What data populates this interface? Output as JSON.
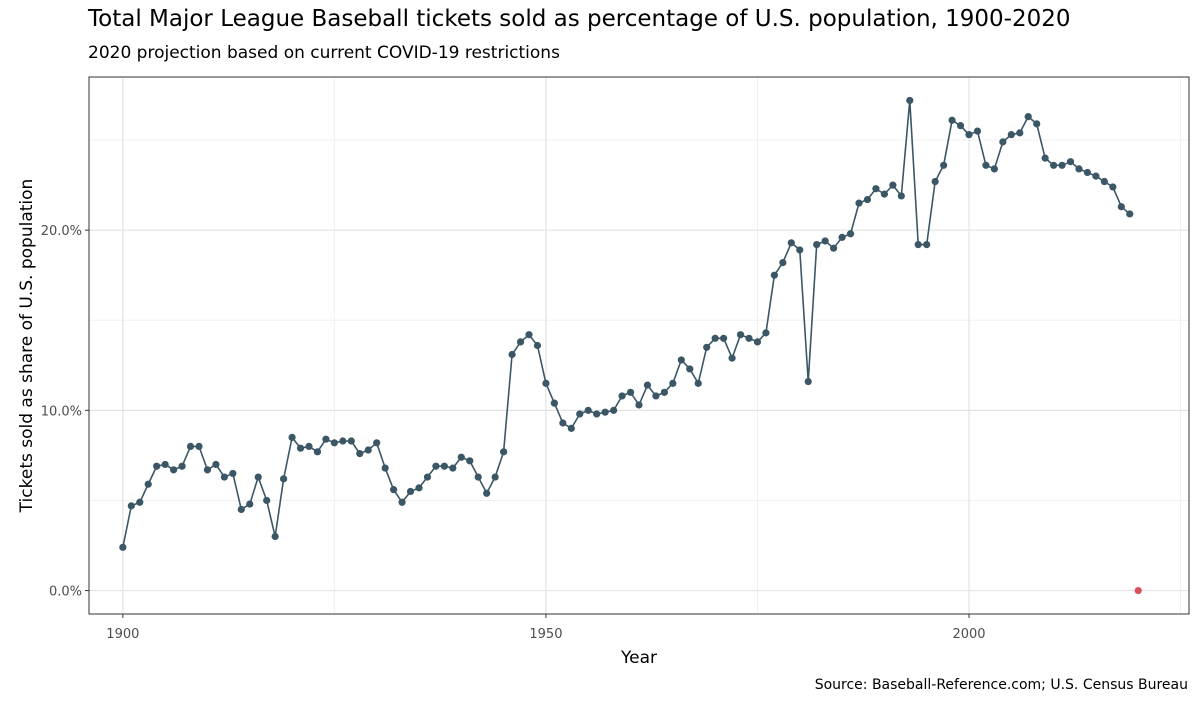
{
  "chart_data": {
    "type": "line",
    "title": "Total Major League Baseball tickets sold as percentage of U.S. population, 1900-2020",
    "subtitle": "2020 projection based on current COVID-19 restrictions",
    "caption": "Source: Baseball-Reference.com; U.S. Census Bureau",
    "xlabel": "Year",
    "ylabel": "Tickets sold as share of U.S. population",
    "xlim": [
      1896,
      2026
    ],
    "ylim": [
      -1.3,
      28.5
    ],
    "x_ticks": [
      1900,
      1950,
      2000
    ],
    "x_tick_labels": [
      "1900",
      "1950",
      "2000"
    ],
    "y_ticks": [
      0,
      10,
      20
    ],
    "y_tick_labels": [
      "0.0%",
      "10.0%",
      "20.0%"
    ],
    "grid": true,
    "series": [
      {
        "color": "#3b5766",
        "x": [
          1900,
          1901,
          1902,
          1903,
          1904,
          1905,
          1906,
          1907,
          1908,
          1909,
          1910,
          1911,
          1912,
          1913,
          1914,
          1915,
          1916,
          1917,
          1918,
          1919,
          1920,
          1921,
          1922,
          1923,
          1924,
          1925,
          1926,
          1927,
          1928,
          1929,
          1930,
          1931,
          1932,
          1933,
          1934,
          1935,
          1936,
          1937,
          1938,
          1939,
          1940,
          1941,
          1942,
          1943,
          1944,
          1945,
          1946,
          1947,
          1948,
          1949,
          1950,
          1951,
          1952,
          1953,
          1954,
          1955,
          1956,
          1957,
          1958,
          1959,
          1960,
          1961,
          1962,
          1963,
          1964,
          1965,
          1966,
          1967,
          1968,
          1969,
          1970,
          1971,
          1972,
          1973,
          1974,
          1975,
          1976,
          1977,
          1978,
          1979,
          1980,
          1981,
          1982,
          1983,
          1984,
          1985,
          1986,
          1987,
          1988,
          1989,
          1990,
          1991,
          1992,
          1993,
          1994,
          1995,
          1996,
          1997,
          1998,
          1999,
          2000,
          2001,
          2002,
          2003,
          2004,
          2005,
          2006,
          2007,
          2008,
          2009,
          2010,
          2011,
          2012,
          2013,
          2014,
          2015,
          2016,
          2017,
          2018,
          2019
        ],
        "y": [
          2.4,
          4.7,
          4.9,
          5.9,
          6.9,
          7.0,
          6.7,
          6.9,
          8.0,
          8.0,
          6.7,
          7.0,
          6.3,
          6.5,
          4.5,
          4.8,
          6.3,
          5.0,
          3.0,
          6.2,
          8.5,
          7.9,
          8.0,
          7.7,
          8.4,
          8.2,
          8.3,
          8.3,
          7.6,
          7.8,
          8.2,
          6.8,
          5.6,
          4.9,
          5.5,
          5.7,
          6.3,
          6.9,
          6.9,
          6.8,
          7.4,
          7.2,
          6.3,
          5.4,
          6.3,
          7.7,
          13.1,
          13.8,
          14.2,
          13.6,
          11.5,
          10.4,
          9.3,
          9.0,
          9.8,
          10.0,
          9.8,
          9.9,
          10.0,
          10.8,
          11.0,
          10.3,
          11.4,
          10.8,
          11.0,
          11.5,
          12.8,
          12.3,
          11.5,
          13.5,
          14.0,
          14.0,
          12.9,
          14.2,
          14.0,
          13.8,
          14.3,
          17.5,
          18.2,
          19.3,
          18.9,
          11.6,
          19.2,
          19.4,
          19.0,
          19.6,
          19.8,
          21.5,
          21.7,
          22.3,
          22.0,
          22.5,
          21.9,
          27.2,
          19.2,
          19.2,
          22.7,
          23.6,
          26.1,
          25.8,
          25.3,
          25.5,
          23.6,
          23.4,
          24.9,
          25.3,
          25.4,
          26.3,
          25.9,
          24.0,
          23.6,
          23.6,
          23.8,
          23.4,
          23.2,
          23.0,
          22.7,
          22.4,
          21.3,
          20.9
        ]
      },
      {
        "color": "#d9535f",
        "x": [
          2020
        ],
        "y": [
          0.0
        ]
      }
    ]
  }
}
